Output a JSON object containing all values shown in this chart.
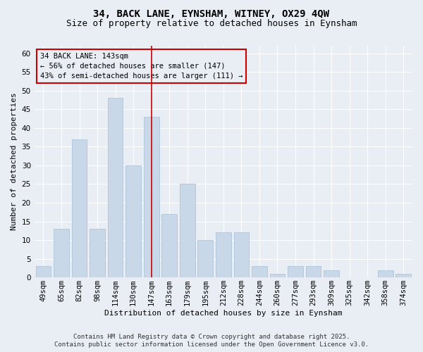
{
  "title1": "34, BACK LANE, EYNSHAM, WITNEY, OX29 4QW",
  "title2": "Size of property relative to detached houses in Eynsham",
  "xlabel": "Distribution of detached houses by size in Eynsham",
  "ylabel": "Number of detached properties",
  "categories": [
    "49sqm",
    "65sqm",
    "82sqm",
    "98sqm",
    "114sqm",
    "130sqm",
    "147sqm",
    "163sqm",
    "179sqm",
    "195sqm",
    "212sqm",
    "228sqm",
    "244sqm",
    "260sqm",
    "277sqm",
    "293sqm",
    "309sqm",
    "325sqm",
    "342sqm",
    "358sqm",
    "374sqm"
  ],
  "values": [
    3,
    13,
    37,
    13,
    48,
    30,
    43,
    17,
    25,
    10,
    12,
    12,
    3,
    1,
    3,
    3,
    2,
    0,
    0,
    2,
    1
  ],
  "bar_color": "#c8d8e8",
  "bar_edgecolor": "#b0c4d8",
  "vline_x_index": 6,
  "vline_color": "#cc0000",
  "ylim": [
    0,
    62
  ],
  "yticks": [
    0,
    5,
    10,
    15,
    20,
    25,
    30,
    35,
    40,
    45,
    50,
    55,
    60
  ],
  "annotation_title": "34 BACK LANE: 143sqm",
  "annotation_line1": "← 56% of detached houses are smaller (147)",
  "annotation_line2": "43% of semi-detached houses are larger (111) →",
  "annotation_box_color": "#cc0000",
  "footer1": "Contains HM Land Registry data © Crown copyright and database right 2025.",
  "footer2": "Contains public sector information licensed under the Open Government Licence v3.0.",
  "bg_color": "#e8eef4",
  "plot_bg_color": "#e8eef4",
  "grid_color": "#ffffff",
  "title1_fontsize": 10,
  "title2_fontsize": 9,
  "xlabel_fontsize": 8,
  "ylabel_fontsize": 8,
  "tick_fontsize": 7.5,
  "footer_fontsize": 6.5
}
